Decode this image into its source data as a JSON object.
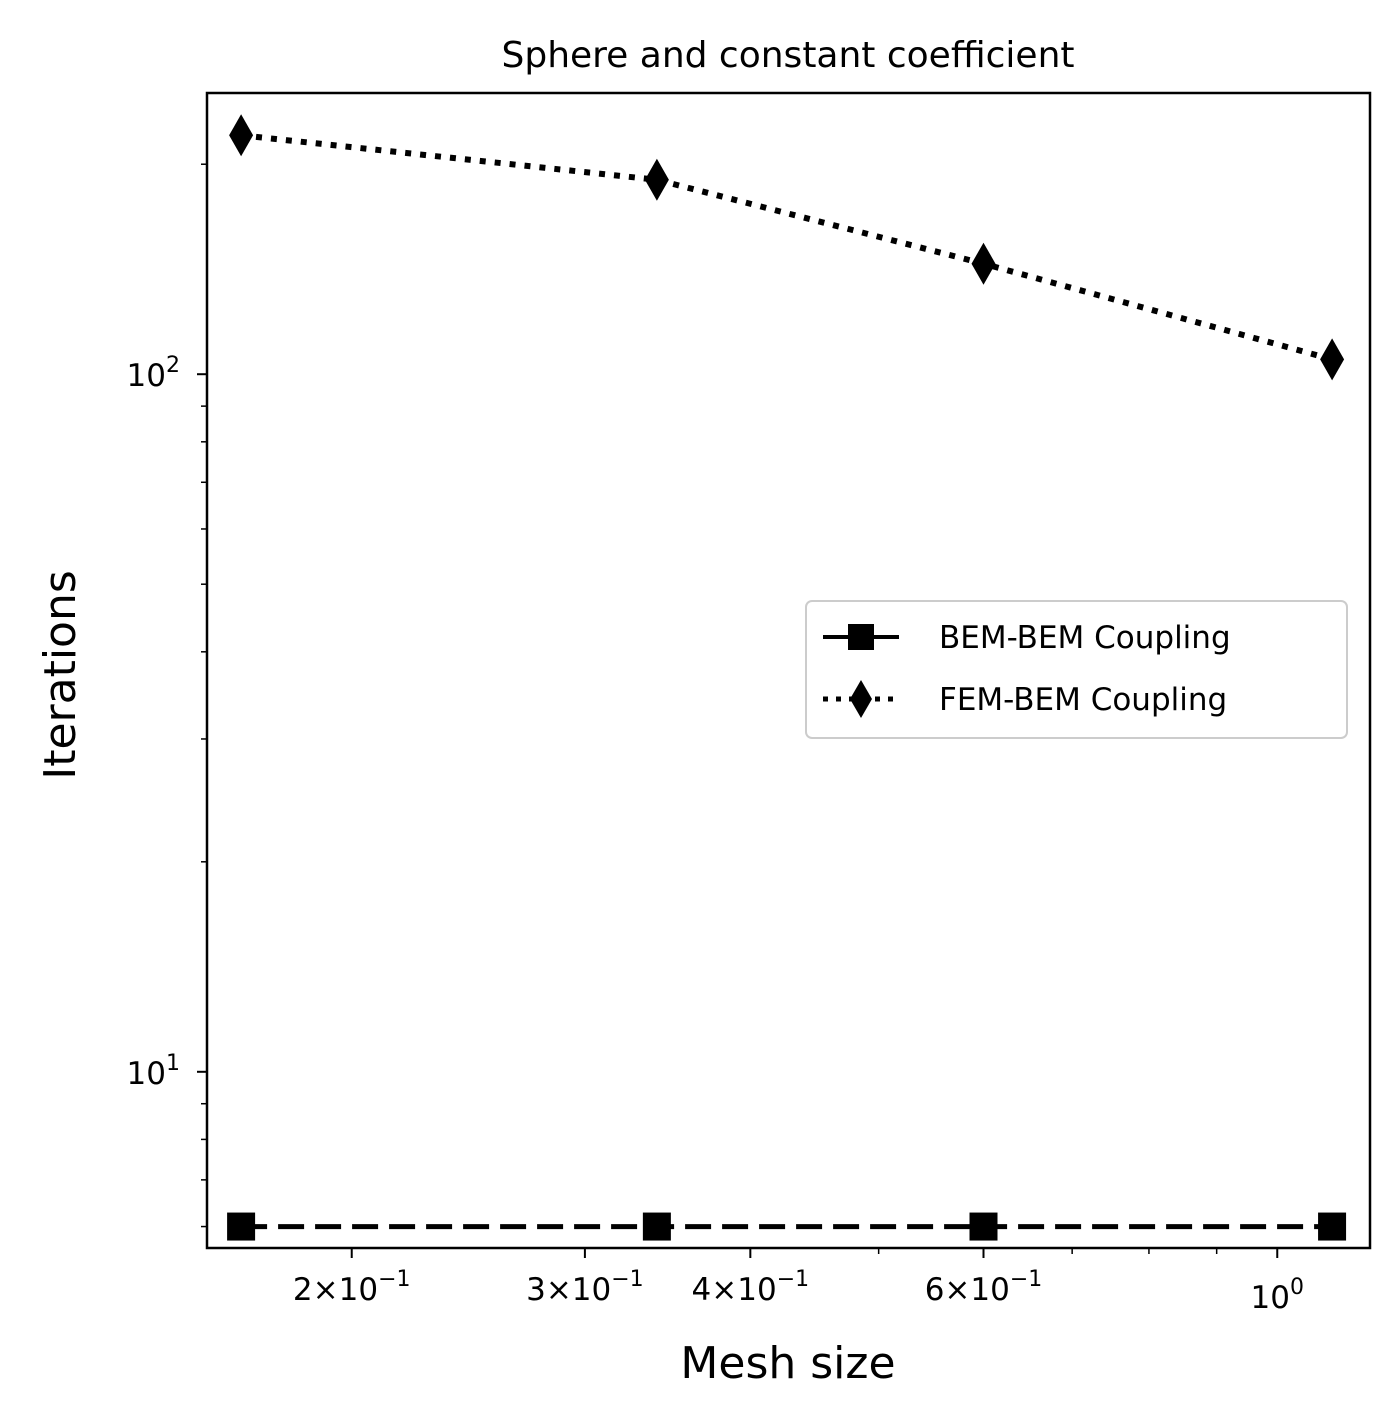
{
  "chart_data": {
    "type": "line",
    "title": "Sphere and constant coefficient",
    "xlabel": "Mesh size",
    "ylabel": "Iterations",
    "xscale": "log",
    "yscale": "log",
    "xlim": [
      0.1555,
      1.175
    ],
    "ylim": [
      5.59,
      253
    ],
    "grid": false,
    "legend_position": "center-right",
    "x_ticks": [
      {
        "value": 0.2,
        "mantissa": "2",
        "exponent": "−1"
      },
      {
        "value": 0.3,
        "mantissa": "3",
        "exponent": "−1"
      },
      {
        "value": 0.4,
        "mantissa": "4",
        "exponent": "−1"
      },
      {
        "value": 0.6,
        "mantissa": "6",
        "exponent": "−1"
      },
      {
        "value": 1.0,
        "mantissa": "",
        "exponent": "0"
      }
    ],
    "y_ticks": [
      {
        "value": 10,
        "exponent": "1"
      },
      {
        "value": 100,
        "exponent": "2"
      }
    ],
    "x": [
      0.165,
      0.34,
      0.6,
      1.1
    ],
    "series": [
      {
        "name": "BEM-BEM Coupling",
        "values": [
          6,
          6,
          6,
          6
        ],
        "marker": "square",
        "linestyle": "dashed",
        "color": "#000000"
      },
      {
        "name": "FEM-BEM Coupling",
        "values": [
          220,
          190,
          144,
          105
        ],
        "marker": "diamond",
        "linestyle": "dotted",
        "color": "#000000"
      }
    ]
  }
}
